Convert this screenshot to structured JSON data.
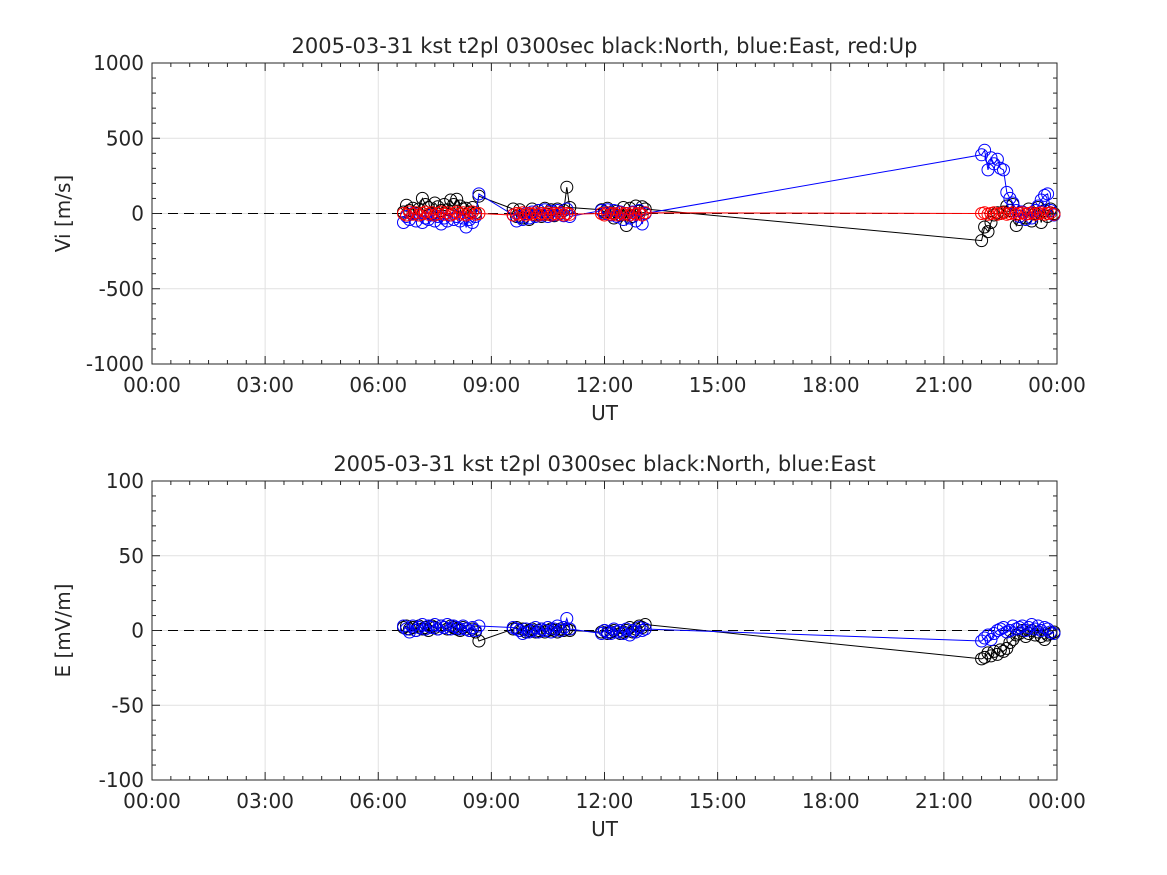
{
  "chart_data": [
    {
      "type": "line",
      "title": "2005-03-31 kst t2pl 0300sec black:North, blue:East, red:Up",
      "xlabel": "UT",
      "ylabel": "Vi [m/s]",
      "xlim": [
        0,
        24
      ],
      "ylim": [
        -1000,
        1000
      ],
      "xticks": [
        "00:00",
        "03:00",
        "06:00",
        "09:00",
        "12:00",
        "15:00",
        "18:00",
        "21:00",
        "00:00"
      ],
      "yticks": [
        "1000",
        "500",
        "0",
        "-500",
        "-1000"
      ],
      "grid": true,
      "reference_line": 0,
      "x": [
        6.67,
        6.75,
        6.83,
        6.92,
        7.0,
        7.08,
        7.17,
        7.25,
        7.33,
        7.42,
        7.5,
        7.58,
        7.67,
        7.75,
        7.83,
        7.92,
        8.0,
        8.08,
        8.17,
        8.25,
        8.33,
        8.42,
        8.5,
        8.58,
        8.67,
        9.58,
        9.67,
        9.75,
        9.83,
        9.92,
        10.0,
        10.08,
        10.17,
        10.25,
        10.33,
        10.42,
        10.5,
        10.58,
        10.67,
        10.75,
        10.83,
        10.92,
        11.0,
        11.08,
        11.92,
        12.0,
        12.08,
        12.17,
        12.25,
        12.33,
        12.42,
        12.5,
        12.58,
        12.67,
        12.75,
        12.83,
        12.92,
        13.0,
        13.08,
        22.0,
        22.08,
        22.17,
        22.25,
        22.33,
        22.42,
        22.5,
        22.58,
        22.67,
        22.75,
        22.83,
        22.92,
        23.0,
        23.08,
        23.17,
        23.25,
        23.33,
        23.42,
        23.5,
        23.58,
        23.67,
        23.75,
        23.83,
        23.92
      ],
      "series": [
        {
          "name": "North",
          "color": "#000000",
          "values": [
            10,
            55,
            20,
            35,
            0,
            30,
            100,
            60,
            40,
            0,
            70,
            45,
            20,
            60,
            25,
            90,
            60,
            95,
            50,
            30,
            35,
            10,
            40,
            5,
            115,
            30,
            -20,
            25,
            -30,
            0,
            -40,
            30,
            -10,
            20,
            -20,
            35,
            -5,
            25,
            -15,
            30,
            0,
            20,
            175,
            40,
            25,
            10,
            35,
            5,
            -30,
            15,
            -10,
            40,
            -80,
            35,
            -20,
            50,
            15,
            45,
            30,
            -180,
            -90,
            -120,
            -60,
            -10,
            5,
            0,
            10,
            50,
            20,
            60,
            -80,
            -40,
            10,
            -30,
            30,
            -50,
            0,
            40,
            -60,
            20,
            -20,
            30,
            0
          ]
        },
        {
          "name": "East",
          "color": "#0000ff",
          "values": [
            -60,
            -20,
            -40,
            0,
            -50,
            -10,
            -60,
            -30,
            -40,
            -10,
            -50,
            -20,
            -70,
            -30,
            -50,
            -10,
            -40,
            -20,
            -50,
            -30,
            -90,
            -40,
            -60,
            -20,
            130,
            -10,
            -50,
            -20,
            -40,
            0,
            -30,
            10,
            -20,
            20,
            -10,
            25,
            -20,
            15,
            -10,
            20,
            0,
            -15,
            30,
            -20,
            20,
            0,
            25,
            -10,
            20,
            -20,
            10,
            -40,
            0,
            -30,
            10,
            -50,
            20,
            -70,
            0,
            390,
            420,
            290,
            370,
            330,
            360,
            300,
            290,
            140,
            100,
            70,
            20,
            -20,
            10,
            -40,
            0,
            -30,
            20,
            50,
            90,
            120,
            130,
            20,
            -10
          ]
        },
        {
          "name": "Up",
          "color": "#ff0000",
          "values": [
            0,
            -10,
            10,
            -5,
            5,
            -10,
            0,
            10,
            -5,
            5,
            -10,
            0,
            10,
            -5,
            5,
            -10,
            0,
            10,
            -5,
            5,
            -10,
            0,
            10,
            -5,
            0,
            -10,
            0,
            -5,
            5,
            -10,
            0,
            -5,
            5,
            -10,
            0,
            -5,
            5,
            -10,
            0,
            -5,
            5,
            -10,
            0,
            -5,
            0,
            -10,
            5,
            -5,
            0,
            -10,
            5,
            -5,
            0,
            -10,
            5,
            -5,
            0,
            -10,
            5,
            0,
            5,
            -5,
            0,
            5,
            -5,
            0,
            5,
            -5,
            0,
            5,
            -5,
            0,
            5,
            -5,
            0,
            5,
            -5,
            0,
            5,
            -5,
            0,
            5,
            -5
          ]
        }
      ]
    },
    {
      "type": "line",
      "title": "2005-03-31 kst t2pl 0300sec black:North, blue:East",
      "xlabel": "UT",
      "ylabel": "E [mV/m]",
      "xlim": [
        0,
        24
      ],
      "ylim": [
        -100,
        100
      ],
      "xticks": [
        "00:00",
        "03:00",
        "06:00",
        "09:00",
        "12:00",
        "15:00",
        "18:00",
        "21:00",
        "00:00"
      ],
      "yticks": [
        "100",
        "50",
        "0",
        "-50",
        "-100"
      ],
      "grid": true,
      "reference_line": 0,
      "x": [
        6.67,
        6.75,
        6.83,
        6.92,
        7.0,
        7.08,
        7.17,
        7.25,
        7.33,
        7.42,
        7.5,
        7.58,
        7.67,
        7.75,
        7.83,
        7.92,
        8.0,
        8.08,
        8.17,
        8.25,
        8.33,
        8.42,
        8.5,
        8.58,
        8.67,
        9.58,
        9.67,
        9.75,
        9.83,
        9.92,
        10.0,
        10.08,
        10.17,
        10.25,
        10.33,
        10.42,
        10.5,
        10.58,
        10.67,
        10.75,
        10.83,
        10.92,
        11.0,
        11.08,
        11.92,
        12.0,
        12.08,
        12.17,
        12.25,
        12.33,
        12.42,
        12.5,
        12.58,
        12.67,
        12.75,
        12.83,
        12.92,
        13.0,
        13.08,
        22.0,
        22.08,
        22.17,
        22.25,
        22.33,
        22.42,
        22.5,
        22.58,
        22.67,
        22.75,
        22.83,
        22.92,
        23.0,
        23.08,
        23.17,
        23.25,
        23.33,
        23.42,
        23.5,
        23.58,
        23.67,
        23.75,
        23.83,
        23.92
      ],
      "series": [
        {
          "name": "North",
          "color": "#000000",
          "values": [
            2,
            3,
            1,
            2,
            0,
            3,
            1,
            2,
            0,
            3,
            2,
            1,
            3,
            2,
            1,
            3,
            2,
            1,
            0,
            2,
            1,
            0,
            1,
            -1,
            -7,
            1,
            2,
            0,
            1,
            -1,
            0,
            1,
            -1,
            0,
            1,
            -1,
            0,
            1,
            0,
            -1,
            1,
            0,
            1,
            0,
            -1,
            0,
            -2,
            -1,
            0,
            -1,
            -2,
            -1,
            0,
            2,
            -1,
            1,
            3,
            2,
            4,
            -19,
            -18,
            -15,
            -17,
            -14,
            -16,
            -13,
            -14,
            -12,
            -8,
            -6,
            -3,
            -2,
            0,
            -4,
            -2,
            0,
            -3,
            -1,
            -4,
            -6,
            -3,
            -2,
            -1
          ]
        },
        {
          "name": "East",
          "color": "#0000ff",
          "values": [
            3,
            1,
            -1,
            3,
            0,
            2,
            4,
            1,
            3,
            2,
            4,
            1,
            3,
            2,
            4,
            1,
            3,
            2,
            1,
            3,
            1,
            0,
            2,
            0,
            3,
            2,
            1,
            0,
            -2,
            1,
            -1,
            0,
            2,
            -1,
            1,
            0,
            2,
            -1,
            1,
            3,
            0,
            2,
            8,
            1,
            -2,
            0,
            -1,
            -2,
            1,
            -1,
            0,
            -2,
            1,
            -3,
            0,
            -1,
            2,
            0,
            1,
            -7,
            -5,
            -3,
            -6,
            -2,
            0,
            1,
            2,
            -1,
            0,
            3,
            1,
            2,
            3,
            0,
            2,
            4,
            1,
            3,
            0,
            2,
            1,
            -1,
            -2
          ]
        }
      ]
    }
  ]
}
